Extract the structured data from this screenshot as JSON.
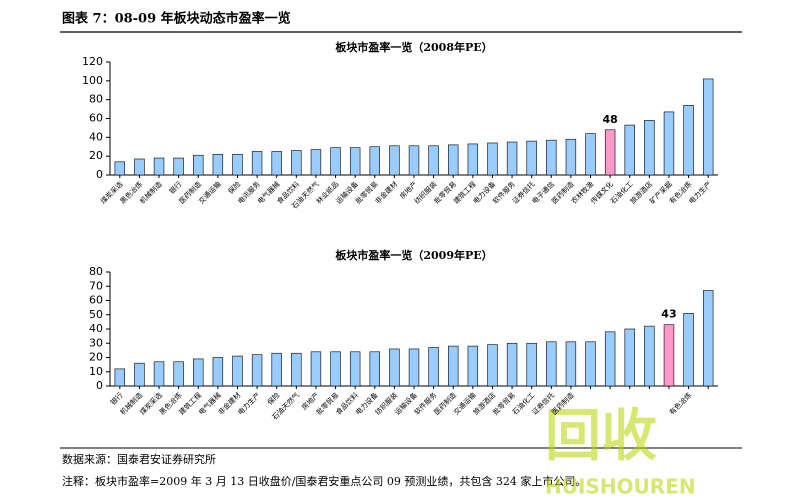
{
  "header": {
    "title": "图表 7：08-09 年板块动态市盈率一览"
  },
  "chart_data": [
    {
      "type": "bar",
      "title": "板块市盈率一览（2008年PE）",
      "categories": [
        "煤炭采选",
        "黑色冶炼",
        "机械制造",
        "银行",
        "医药制造",
        "交通运输",
        "保险",
        "电讯服务",
        "电气器械",
        "食品饮料",
        "石油天然气",
        "林业纸品",
        "运输设备",
        "批零贸易",
        "非金建材",
        "房地产",
        "纺织服装",
        "批零贸易",
        "建筑工程",
        "电力设备",
        "软件服务",
        "证券信托",
        "电子通信",
        "医药制造",
        "农林牧渔",
        "传媒文化",
        "石油化工",
        "旅游酒店",
        "矿产采掘",
        "有色冶炼",
        "电力生产"
      ],
      "values": [
        14,
        17,
        18,
        18,
        21,
        22,
        22,
        25,
        25,
        26,
        27,
        29,
        29,
        30,
        31,
        31,
        31,
        32,
        33,
        34,
        35,
        36,
        37,
        38,
        44,
        48,
        53,
        58,
        67,
        74,
        102
      ],
      "value_labels": [
        null,
        null,
        null,
        null,
        null,
        null,
        null,
        null,
        null,
        null,
        null,
        null,
        null,
        null,
        null,
        null,
        null,
        null,
        null,
        null,
        null,
        null,
        null,
        null,
        null,
        "48",
        null,
        null,
        null,
        null,
        null
      ],
      "colors": [
        "#99ccff",
        "#99ccff",
        "#99ccff",
        "#99ccff",
        "#99ccff",
        "#99ccff",
        "#99ccff",
        "#99ccff",
        "#99ccff",
        "#99ccff",
        "#99ccff",
        "#99ccff",
        "#99ccff",
        "#99ccff",
        "#99ccff",
        "#99ccff",
        "#99ccff",
        "#99ccff",
        "#99ccff",
        "#99ccff",
        "#99ccff",
        "#99ccff",
        "#99ccff",
        "#99ccff",
        "#99ccff",
        "#ff99cc",
        "#99ccff",
        "#99ccff",
        "#99ccff",
        "#99ccff",
        "#99ccff"
      ],
      "ylim": [
        0,
        120
      ],
      "yticks": [
        0,
        20,
        40,
        60,
        80,
        100,
        120
      ]
    },
    {
      "type": "bar",
      "title": "板块市盈率一览（2009年PE）",
      "categories": [
        "银行",
        "机械制造",
        "煤炭采选",
        "黑色冶炼",
        "建筑工程",
        "电气器械",
        "非金建材",
        "电力生产",
        "保险",
        "石油天然气",
        "房地产",
        "批零贸易",
        "食品饮料",
        "电力设备",
        "纺织服装",
        "运输设备",
        "软件服务",
        "医药制造",
        "交通运输",
        "旅游酒店",
        "批零贸易",
        "石油化工",
        "证券信托",
        "医药制造",
        null,
        null,
        null,
        null,
        null,
        "有色冶炼",
        null
      ],
      "values": [
        12,
        16,
        17,
        17,
        19,
        20,
        21,
        22,
        23,
        23,
        24,
        24,
        24,
        24,
        26,
        26,
        27,
        28,
        28,
        29,
        30,
        30,
        31,
        31,
        31,
        38,
        40,
        42,
        43,
        51,
        67
      ],
      "value_labels": [
        null,
        null,
        null,
        null,
        null,
        null,
        null,
        null,
        null,
        null,
        null,
        null,
        null,
        null,
        null,
        null,
        null,
        null,
        null,
        null,
        null,
        null,
        null,
        null,
        null,
        null,
        null,
        null,
        "43",
        null,
        null
      ],
      "colors": [
        "#99ccff",
        "#99ccff",
        "#99ccff",
        "#99ccff",
        "#99ccff",
        "#99ccff",
        "#99ccff",
        "#99ccff",
        "#99ccff",
        "#99ccff",
        "#99ccff",
        "#99ccff",
        "#99ccff",
        "#99ccff",
        "#99ccff",
        "#99ccff",
        "#99ccff",
        "#99ccff",
        "#99ccff",
        "#99ccff",
        "#99ccff",
        "#99ccff",
        "#99ccff",
        "#99ccff",
        "#99ccff",
        "#99ccff",
        "#99ccff",
        "#99ccff",
        "#ff99cc",
        "#99ccff",
        "#99ccff"
      ],
      "ylim": [
        0,
        80
      ],
      "yticks": [
        0,
        10,
        20,
        30,
        40,
        50,
        60,
        70,
        80
      ]
    }
  ],
  "footer": {
    "source": "数据来源：国泰君安证券研究所",
    "note": "注释：板块市盈率=2009 年 3 月 13 日收盘价/国泰君安重点公司 09 预测业绩，共包含 324 家上市公司。"
  },
  "watermark": {
    "text": "回收",
    "sub": "HUISHOUREN"
  }
}
